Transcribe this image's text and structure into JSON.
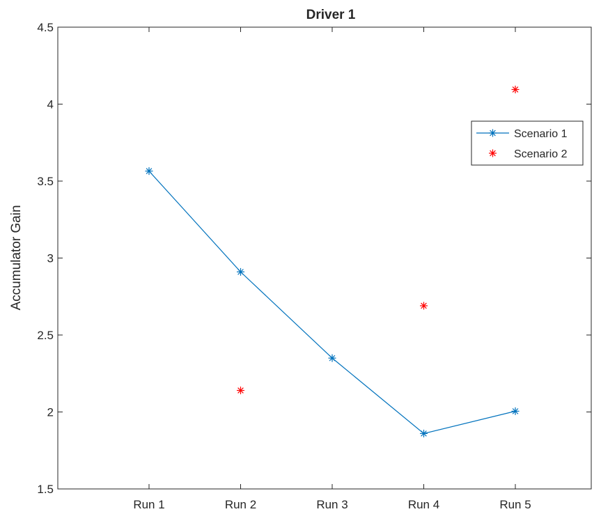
{
  "chart_data": {
    "type": "line",
    "title": "Driver 1",
    "xlabel": "",
    "ylabel": "Accumulator Gain",
    "categories": [
      "Run 1",
      "Run 2",
      "Run 3",
      "Run 4",
      "Run 5"
    ],
    "ylim": [
      1.5,
      4.5
    ],
    "yticks": [
      "1.5",
      "2",
      "2.5",
      "3",
      "3.5",
      "4",
      "4.5"
    ],
    "grid": false,
    "legend_position": "right",
    "series": [
      {
        "name": "Scenario 1",
        "values": [
          3.565,
          2.91,
          2.35,
          1.86,
          2.005
        ],
        "style": "line-with-markers",
        "marker": "asterisk",
        "color": "#0072bd"
      },
      {
        "name": "Scenario 2",
        "values": [
          null,
          2.14,
          null,
          2.69,
          4.095
        ],
        "style": "markers-only",
        "marker": "asterisk",
        "color": "#ff0000"
      }
    ]
  }
}
